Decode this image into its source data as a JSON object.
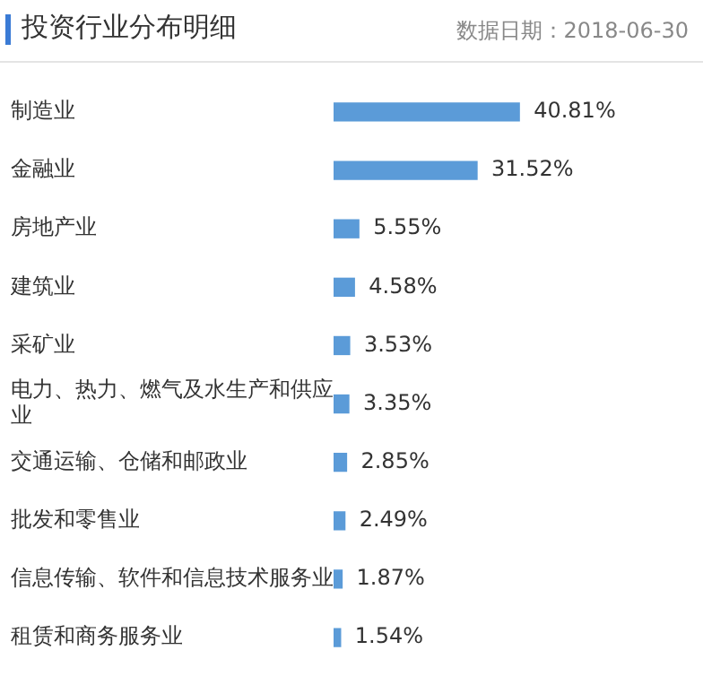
{
  "chart_data": {
    "type": "bar",
    "orientation": "horizontal",
    "title": "投资行业分布明细",
    "subtitle": "数据日期：2018-06-30",
    "categories": [
      "制造业",
      "金融业",
      "房地产业",
      "建筑业",
      "采矿业",
      "电力、热力、燃气及水生产和供应业",
      "交通运输、仓储和邮政业",
      "批发和零售业",
      "信息传输、软件和信息技术服务业",
      "租赁和商务服务业"
    ],
    "values": [
      40.81,
      31.52,
      5.55,
      4.58,
      3.53,
      3.35,
      2.85,
      2.49,
      1.87,
      1.54
    ],
    "value_labels": [
      "40.81%",
      "31.52%",
      "5.55%",
      "4.58%",
      "3.53%",
      "3.35%",
      "2.85%",
      "2.49%",
      "1.87%",
      "1.54%"
    ],
    "color": "#5b9bd8"
  }
}
